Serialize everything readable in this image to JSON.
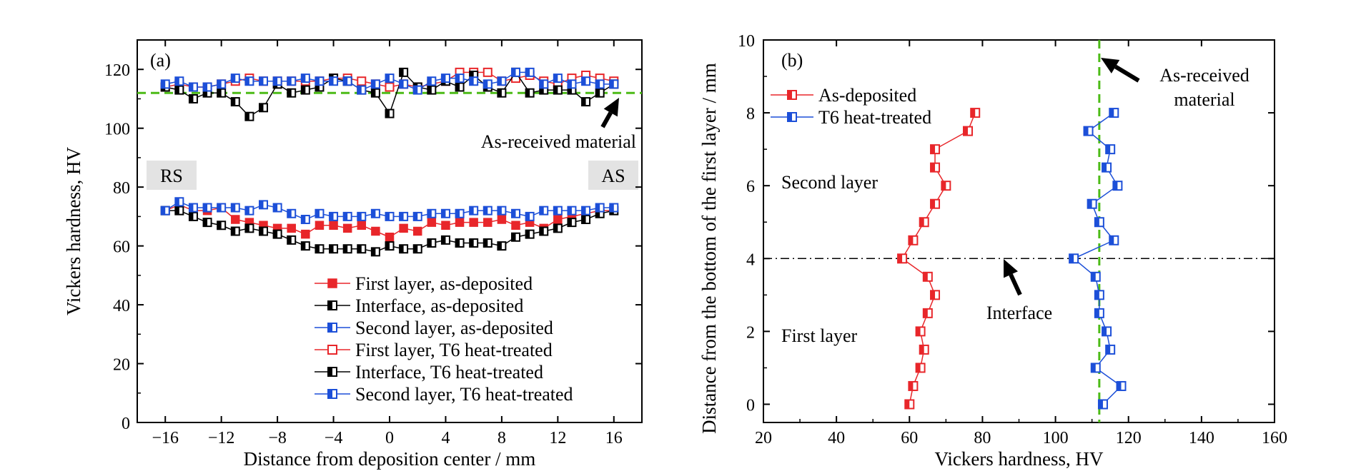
{
  "chart_data": [
    {
      "panel": "(a)",
      "type": "line",
      "xlabel": "Distance from deposition center / mm",
      "ylabel": "Vickers hardness, HV",
      "xlim": [
        -18,
        18
      ],
      "ylim": [
        0,
        130
      ],
      "xticks": [
        -16,
        -12,
        -8,
        -4,
        0,
        4,
        8,
        12,
        16
      ],
      "yticks": [
        0,
        20,
        40,
        60,
        80,
        100,
        120
      ],
      "reference_line": {
        "y": 112,
        "label": "As-received material",
        "color": "#4cbb17"
      },
      "region_labels": [
        "RS",
        "AS"
      ],
      "legend_position": "bottom-right",
      "x": [
        -16,
        -15,
        -14,
        -13,
        -12,
        -11,
        -10,
        -9,
        -8,
        -7,
        -6,
        -5,
        -4,
        -3,
        -2,
        -1,
        0,
        1,
        2,
        3,
        4,
        5,
        6,
        7,
        8,
        9,
        10,
        11,
        12,
        13,
        14,
        15,
        16
      ],
      "series": [
        {
          "name": "First layer, as-deposited",
          "color": "#e8262a",
          "marker": "filled",
          "values": [
            72,
            74,
            72,
            72,
            73,
            69,
            68,
            67,
            66,
            66,
            64,
            67,
            67,
            66,
            67,
            65,
            63,
            66,
            65,
            68,
            67,
            68,
            68,
            68,
            69,
            67,
            68,
            66,
            69,
            70,
            71,
            72,
            72
          ]
        },
        {
          "name": "Interface, as-deposited",
          "color": "#000000",
          "marker": "half",
          "values": [
            72,
            72,
            70,
            68,
            67,
            65,
            66,
            65,
            64,
            62,
            60,
            59,
            59,
            59,
            59,
            58,
            60,
            59,
            59,
            61,
            62,
            61,
            61,
            61,
            60,
            63,
            64,
            65,
            66,
            68,
            69,
            71,
            72
          ]
        },
        {
          "name": "Second layer, as-deposited",
          "color": "#1c4fd8",
          "marker": "half",
          "values": [
            72,
            75,
            73,
            73,
            73,
            73,
            72,
            74,
            73,
            71,
            69,
            71,
            70,
            70,
            70,
            71,
            70,
            70,
            70,
            71,
            71,
            71,
            72,
            72,
            72,
            71,
            70,
            72,
            72,
            72,
            72,
            73,
            73
          ]
        },
        {
          "name": "First layer, T6 heat-treated",
          "color": "#e8262a",
          "marker": "open",
          "values": [
            114,
            115,
            114,
            114,
            115,
            116,
            117,
            116,
            116,
            116,
            116,
            116,
            117,
            117,
            116,
            115,
            114,
            115,
            114,
            115,
            116,
            119,
            119,
            119,
            116,
            117,
            118,
            116,
            115,
            117,
            118,
            117,
            116
          ]
        },
        {
          "name": "Interface, T6 heat-treated",
          "color": "#000000",
          "marker": "half",
          "values": [
            114,
            113,
            110,
            112,
            112,
            109,
            104,
            107,
            115,
            112,
            113,
            114,
            117,
            116,
            113,
            112,
            105,
            119,
            114,
            113,
            116,
            114,
            118,
            114,
            112,
            119,
            112,
            113,
            113,
            113,
            109,
            112,
            115
          ]
        },
        {
          "name": "Second layer, T6 heat-treated",
          "color": "#1c4fd8",
          "marker": "half",
          "values": [
            115,
            116,
            114,
            114,
            115,
            117,
            116,
            116,
            116,
            116,
            117,
            116,
            116,
            116,
            113,
            115,
            117,
            115,
            113,
            116,
            117,
            117,
            116,
            115,
            116,
            119,
            119,
            115,
            117,
            115,
            116,
            115,
            115
          ]
        }
      ]
    },
    {
      "panel": "(b)",
      "type": "line",
      "xlabel": "Vickers hardness, HV",
      "ylabel": "Distance from the bottom of the first layer / mm",
      "xlim": [
        20,
        160
      ],
      "ylim": [
        -0.5,
        10
      ],
      "xticks": [
        20,
        40,
        60,
        80,
        100,
        120,
        140,
        160
      ],
      "yticks": [
        0,
        2,
        4,
        6,
        8,
        10
      ],
      "reference_line": {
        "x": 112,
        "label": [
          "As-received",
          "material"
        ],
        "color": "#4cbb17"
      },
      "interface_line": {
        "y": 4,
        "label": "Interface"
      },
      "region_labels": [
        "Second layer",
        "First layer"
      ],
      "legend_position": "top-left",
      "y": [
        0,
        0.5,
        1,
        1.5,
        2,
        2.5,
        3,
        3.5,
        4,
        4.5,
        5,
        5.5,
        6,
        6.5,
        7,
        7.5,
        8
      ],
      "series": [
        {
          "name": "As-deposited",
          "color": "#e8262a",
          "marker": "half",
          "values": [
            60,
            61,
            63,
            64,
            63,
            65,
            67,
            65,
            58,
            61,
            64,
            67,
            70,
            67,
            67,
            76,
            78
          ]
        },
        {
          "name": "T6 heat-treated",
          "color": "#1c4fd8",
          "marker": "half",
          "values": [
            113,
            118,
            111,
            115,
            114,
            112,
            112,
            111,
            105,
            116,
            112,
            110,
            117,
            114,
            115,
            109,
            116
          ]
        }
      ]
    }
  ]
}
